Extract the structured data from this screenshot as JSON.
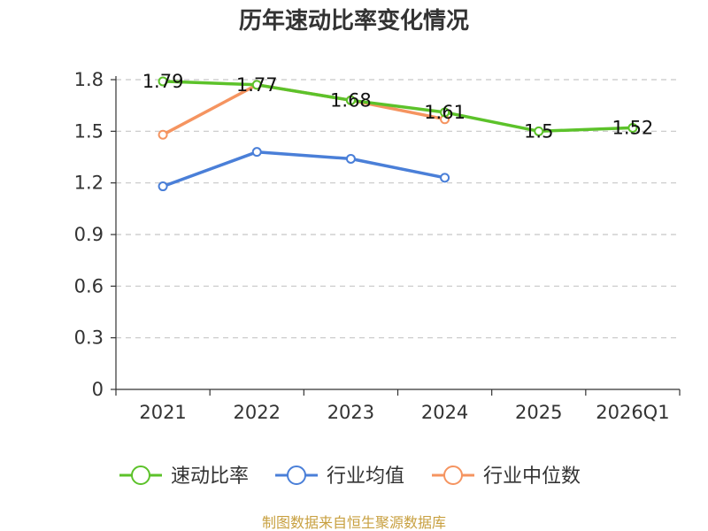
{
  "chart_data": {
    "type": "line",
    "title": "历年速动比率变化情况",
    "categories": [
      "2021",
      "2022",
      "2023",
      "2024",
      "2025",
      "2026Q1"
    ],
    "ylim": [
      0,
      1.8
    ],
    "yticks": [
      "0",
      "0.3",
      "0.6",
      "0.9",
      "1.2",
      "1.5",
      "1.8"
    ],
    "grid": true,
    "legend_position": "bottom",
    "series": [
      {
        "name": "速动比率",
        "color": "#5cc22a",
        "values": [
          1.79,
          1.77,
          1.68,
          1.61,
          1.5,
          1.52
        ],
        "labels": [
          "1.79",
          "1.77",
          "1.68",
          "1.61",
          "1.5",
          "1.52"
        ]
      },
      {
        "name": "行业均值",
        "color": "#4a7fd8",
        "values": [
          1.18,
          1.38,
          1.34,
          1.23,
          null,
          null
        ],
        "labels": null
      },
      {
        "name": "行业中位数",
        "color": "#f59460",
        "values": [
          1.48,
          1.77,
          1.68,
          1.57,
          null,
          null
        ],
        "labels": null
      }
    ]
  },
  "source": {
    "text": "制图数据来自恒生聚源数据库",
    "color": "#c8a040"
  }
}
